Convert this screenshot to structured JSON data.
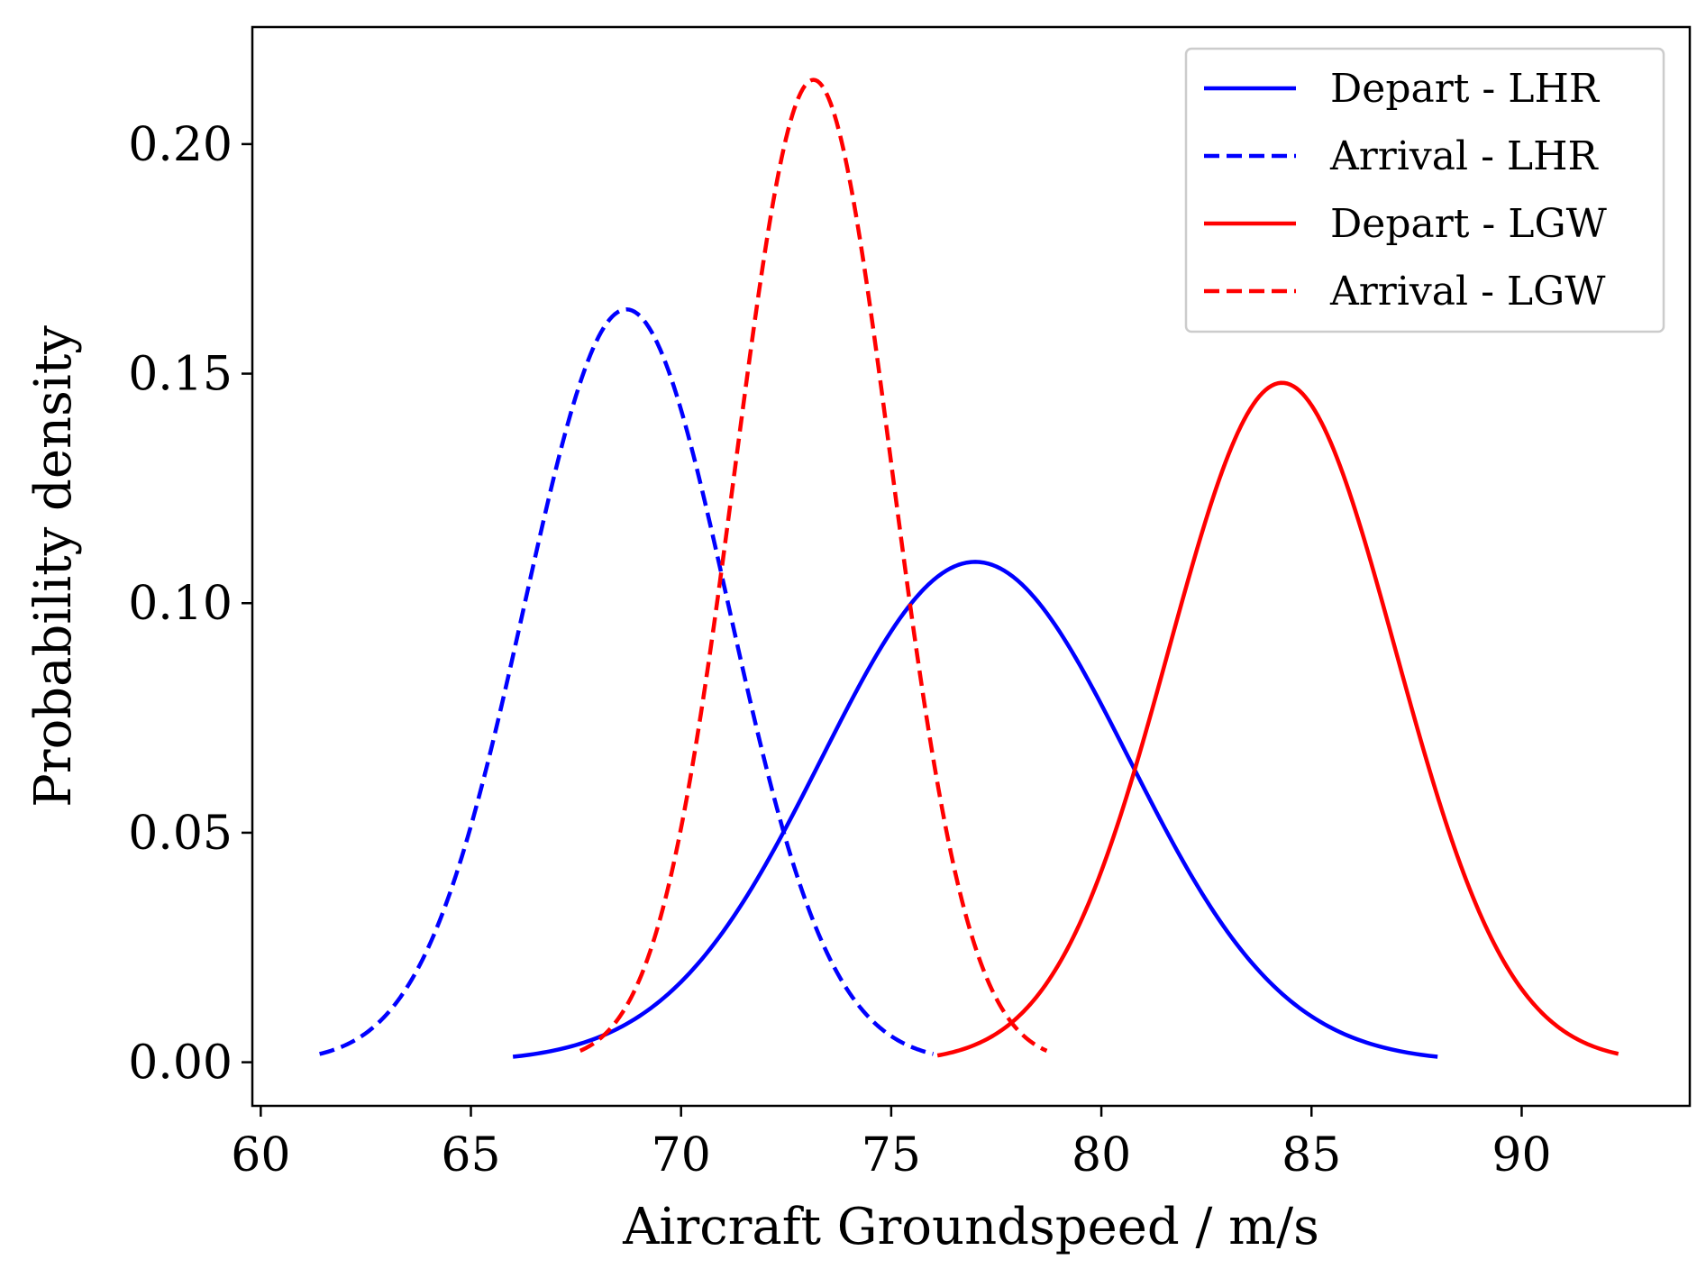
{
  "chart_data": {
    "type": "line",
    "title": "",
    "xlabel": "Aircraft Groundspeed / m/s",
    "ylabel": "Probability density",
    "xlim": [
      59.8,
      94.0
    ],
    "ylim": [
      -0.0095,
      0.2255
    ],
    "xticks": [
      60,
      65,
      70,
      75,
      80,
      85,
      90
    ],
    "yticks": [
      0.0,
      0.05,
      0.1,
      0.15,
      0.2
    ],
    "xtick_labels": [
      "60",
      "65",
      "70",
      "75",
      "80",
      "85",
      "90"
    ],
    "ytick_labels": [
      "0.00",
      "0.05",
      "0.10",
      "0.15",
      "0.20"
    ],
    "grid": false,
    "legend_position": "upper-right",
    "series": [
      {
        "name": "Depart - LHR",
        "color": "#0000ff",
        "dash": "solid",
        "mean": 77.0,
        "std": 3.66,
        "x_range": [
          66.0,
          88.0
        ],
        "peak_density": 0.109
      },
      {
        "name": "Arrival - LHR",
        "color": "#0000ff",
        "dash": "dashed",
        "mean": 68.7,
        "std": 2.43,
        "x_range": [
          61.4,
          76.0
        ],
        "peak_density": 0.164
      },
      {
        "name": "Depart - LGW",
        "color": "#ff0000",
        "dash": "solid",
        "mean": 84.3,
        "std": 2.7,
        "x_range": [
          76.1,
          92.3
        ],
        "peak_density": 0.148
      },
      {
        "name": "Arrival - LGW",
        "color": "#ff0000",
        "dash": "dashed",
        "mean": 73.15,
        "std": 1.86,
        "x_range": [
          67.6,
          78.7
        ],
        "peak_density": 0.214
      }
    ]
  }
}
